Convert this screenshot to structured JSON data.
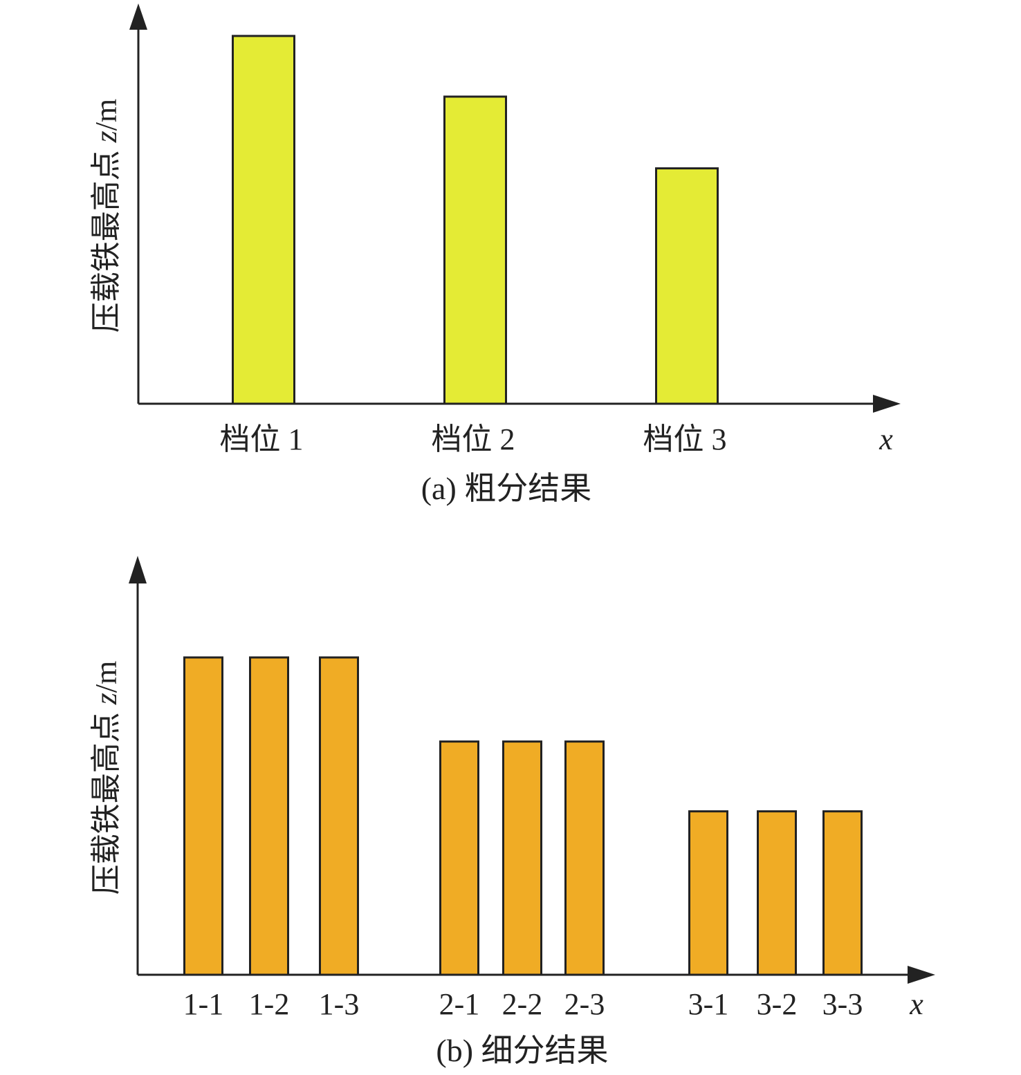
{
  "chart_data": [
    {
      "type": "bar",
      "caption": "(a) 粗分结果",
      "ylabel_text": "压载铁最高点 ",
      "ylabel_var": "z",
      "ylabel_unit": "/m",
      "xlabel": "x",
      "categories": [
        "档位 1",
        "档位 2",
        "档位 3"
      ],
      "values": [
        1.0,
        0.835,
        0.64
      ],
      "ylim": [
        0,
        1.0
      ],
      "grid": false,
      "bar_color": "#e4eb35"
    },
    {
      "type": "bar",
      "caption": "(b) 细分结果",
      "ylabel_text": "压载铁最高点 ",
      "ylabel_var": "z",
      "ylabel_unit": "/m",
      "xlabel": "x",
      "categories": [
        "1-1",
        "1-2",
        "1-3",
        "2-1",
        "2-2",
        "2-3",
        "3-1",
        "3-2",
        "3-3"
      ],
      "groups": [
        0,
        0,
        0,
        1,
        1,
        1,
        2,
        2,
        2
      ],
      "values": [
        1.0,
        1.0,
        1.0,
        0.735,
        0.735,
        0.735,
        0.515,
        0.515,
        0.515
      ],
      "ylim": [
        0,
        1.0
      ],
      "grid": false,
      "bar_color": "#f0ac25"
    }
  ]
}
